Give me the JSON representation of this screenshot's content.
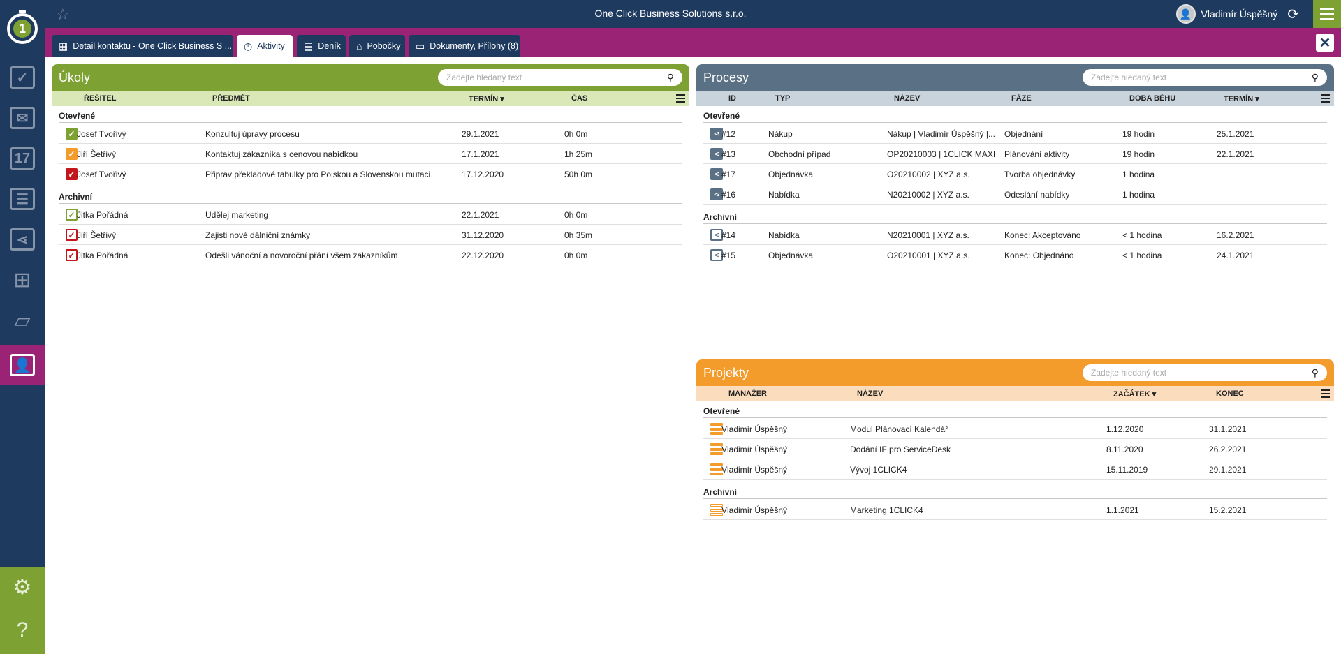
{
  "app": {
    "title": "One Click Business Solutions s.r.o.",
    "user_name": "Vladimír Úspěšný"
  },
  "tabs": [
    {
      "label": "Detail kontaktu - One Click Business S ...",
      "icon": "grid-icon"
    },
    {
      "label": "Aktivity",
      "icon": "clock-icon",
      "active": true
    },
    {
      "label": "Deník",
      "icon": "book-icon"
    },
    {
      "label": "Pobočky",
      "icon": "home-icon"
    },
    {
      "label": "Dokumenty, Přílohy (8)",
      "icon": "folder-icon"
    }
  ],
  "sidebar": {
    "items": [
      "checkbox-icon",
      "mail-icon",
      "calendar-icon",
      "projects-icon",
      "process-icon",
      "org-chart-icon",
      "folder-icon",
      "contacts-icon",
      "settings-icon",
      "help-icon"
    ],
    "calendar_day": "17"
  },
  "colors": {
    "navy": "#1e3a5f",
    "magenta": "#9b2376",
    "green": "#7da133",
    "orange": "#f39b2b",
    "slate": "#5a7185"
  },
  "ukoly": {
    "title": "Úkoly",
    "search_placeholder": "Zadejte hledaný text",
    "columns": {
      "resitel": "ŘEŠITEL",
      "predmet": "PŘEDMĚT",
      "termin": "TERMÍN",
      "cas": "ČAS"
    },
    "open_label": "Otevřené",
    "archive_label": "Archivní",
    "open": [
      {
        "resitel": "Josef Tvořivý",
        "predmet": "Konzultuj úpravy procesu",
        "termin": "29.1.2021",
        "cas": "0h 0m",
        "status": "green"
      },
      {
        "resitel": "Jiří Šetřivý",
        "predmet": "Kontaktuj zákazníka s cenovou nabídkou",
        "termin": "17.1.2021",
        "cas": "1h 25m",
        "status": "orange"
      },
      {
        "resitel": "Josef Tvořivý",
        "predmet": "Připrav překladové tabulky pro Polskou a Slovenskou mutaci",
        "termin": "17.12.2020",
        "cas": "50h 0m",
        "status": "red"
      }
    ],
    "archive": [
      {
        "resitel": "Jitka Pořádná",
        "predmet": "Udělej marketing",
        "termin": "22.1.2021",
        "cas": "0h 0m",
        "status": "green"
      },
      {
        "resitel": "Jiří Šetřivý",
        "predmet": "Zajisti nové dálniční známky",
        "termin": "31.12.2020",
        "cas": "0h 35m",
        "status": "red"
      },
      {
        "resitel": "Jitka Pořádná",
        "predmet": "Odešli vánoční a novoroční přání všem zákazníkům",
        "termin": "22.12.2020",
        "cas": "0h 0m",
        "status": "red"
      }
    ]
  },
  "procesy": {
    "title": "Procesy",
    "search_placeholder": "Zadejte hledaný text",
    "columns": {
      "id": "ID",
      "typ": "TYP",
      "nazev": "NÁZEV",
      "faze": "FÁZE",
      "doba": "DOBA BĚHU",
      "termin": "TERMÍN"
    },
    "open_label": "Otevřené",
    "archive_label": "Archivní",
    "open": [
      {
        "id": "#12",
        "typ": "Nákup",
        "nazev": "Nákup | Vladimír Úspěšný |...",
        "faze": "Objednání",
        "doba": "19 hodin",
        "termin": "25.1.2021"
      },
      {
        "id": "#13",
        "typ": "Obchodní případ",
        "nazev": "OP20210003 | 1CLICK MAXI",
        "faze": "Plánování aktivity",
        "doba": "19 hodin",
        "termin": "22.1.2021"
      },
      {
        "id": "#17",
        "typ": "Objednávka",
        "nazev": "O20210002 | XYZ a.s.",
        "faze": "Tvorba objednávky",
        "doba": "1 hodina",
        "termin": ""
      },
      {
        "id": "#16",
        "typ": "Nabídka",
        "nazev": "N20210002 | XYZ a.s.",
        "faze": "Odeslání nabídky",
        "doba": "1 hodina",
        "termin": ""
      }
    ],
    "archive": [
      {
        "id": "#14",
        "typ": "Nabídka",
        "nazev": "N20210001 | XYZ a.s.",
        "faze": "Konec: Akceptováno",
        "doba": "< 1 hodina",
        "termin": "16.2.2021"
      },
      {
        "id": "#15",
        "typ": "Objednávka",
        "nazev": "O20210001 | XYZ a.s.",
        "faze": "Konec: Objednáno",
        "doba": "< 1 hodina",
        "termin": "24.1.2021"
      }
    ]
  },
  "projekty": {
    "title": "Projekty",
    "search_placeholder": "Zadejte hledaný text",
    "columns": {
      "manazer": "MANAŽER",
      "nazev": "NÁZEV",
      "zacatek": "ZAČÁTEK",
      "konec": "KONEC"
    },
    "open_label": "Otevřené",
    "archive_label": "Archivní",
    "open": [
      {
        "manazer": "Vladimír Úspěšný",
        "nazev": "Modul Plánovací Kalendář",
        "zacatek": "1.12.2020",
        "konec": "31.1.2021"
      },
      {
        "manazer": "Vladimír Úspěšný",
        "nazev": "Dodání IF pro ServiceDesk",
        "zacatek": "8.11.2020",
        "konec": "26.2.2021"
      },
      {
        "manazer": "Vladimír Úspěšný",
        "nazev": "Vývoj 1CLICK4",
        "zacatek": "15.11.2019",
        "konec": "29.1.2021"
      }
    ],
    "archive": [
      {
        "manazer": "Vladimír Úspěšný",
        "nazev": "Marketing 1CLICK4",
        "zacatek": "1.1.2021",
        "konec": "15.2.2021"
      }
    ]
  }
}
